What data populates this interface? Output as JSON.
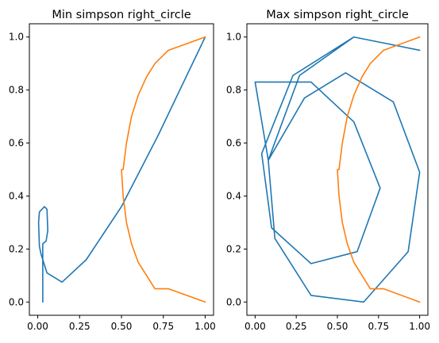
{
  "chart_data": [
    {
      "type": "line",
      "title": "Min simpson right_circle",
      "xlabel": "",
      "ylabel": "",
      "xlim": [
        -0.05,
        1.05
      ],
      "ylim": [
        -0.05,
        1.05
      ],
      "xticks": [
        0.0,
        0.25,
        0.5,
        0.75,
        1.0
      ],
      "xtick_labels": [
        "0.00",
        "0.25",
        "0.50",
        "0.75",
        "1.00"
      ],
      "yticks": [
        0.0,
        0.2,
        0.4,
        0.6,
        0.8,
        1.0
      ],
      "ytick_labels": [
        "0.0",
        "0.2",
        "0.4",
        "0.6",
        "0.8",
        "1.0"
      ],
      "grid": false,
      "series": [
        {
          "color": "#1f77b4",
          "x": [
            0.03,
            0.03,
            0.05,
            0.06,
            0.055,
            0.04,
            0.025,
            0.01,
            0.005,
            0.01,
            0.02,
            0.055,
            0.145,
            0.29,
            0.5,
            0.72,
            1.0
          ],
          "y": [
            0.0,
            0.22,
            0.23,
            0.27,
            0.35,
            0.36,
            0.35,
            0.34,
            0.3,
            0.21,
            0.18,
            0.11,
            0.075,
            0.16,
            0.36,
            0.63,
            1.0
          ]
        },
        {
          "color": "#ff7f0e",
          "x": [
            1.0,
            0.78,
            0.7,
            0.65,
            0.6,
            0.56,
            0.53,
            0.51,
            0.5,
            0.51,
            0.53,
            0.56,
            0.6,
            0.65,
            0.7,
            0.78,
            1.0
          ],
          "y": [
            1.0,
            0.95,
            0.9,
            0.85,
            0.78,
            0.7,
            0.6,
            0.5,
            0.5,
            0.4,
            0.3,
            0.22,
            0.15,
            0.1,
            0.05,
            0.05,
            0.0
          ]
        }
      ]
    },
    {
      "type": "line",
      "title": "Max simpson right_circle",
      "xlabel": "",
      "ylabel": "",
      "xlim": [
        -0.05,
        1.05
      ],
      "ylim": [
        -0.05,
        1.05
      ],
      "xticks": [
        0.0,
        0.25,
        0.5,
        0.75,
        1.0
      ],
      "xtick_labels": [
        "0.00",
        "0.25",
        "0.50",
        "0.75",
        "1.00"
      ],
      "yticks": [
        0.0,
        0.2,
        0.4,
        0.6,
        0.8,
        1.0
      ],
      "ytick_labels": [
        "0.0",
        "0.2",
        "0.4",
        "0.6",
        "0.8",
        "1.0"
      ],
      "grid": false,
      "series": [
        {
          "color": "#1f77b4",
          "x": [
            0.0,
            0.34,
            0.6,
            0.76,
            0.62,
            0.34,
            0.1,
            0.04,
            0.23,
            0.6,
            1.0,
            0.6,
            0.27,
            0.08,
            0.12,
            0.34,
            0.66,
            0.93,
            1.0,
            0.84,
            0.55,
            0.3,
            0.08,
            0.0
          ],
          "y": [
            0.83,
            0.83,
            0.68,
            0.43,
            0.19,
            0.145,
            0.28,
            0.56,
            0.855,
            1.0,
            0.95,
            1.0,
            0.855,
            0.535,
            0.24,
            0.025,
            0.0,
            0.19,
            0.49,
            0.755,
            0.865,
            0.77,
            0.535,
            0.83
          ]
        },
        {
          "color": "#ff7f0e",
          "x": [
            1.0,
            0.78,
            0.7,
            0.65,
            0.6,
            0.56,
            0.53,
            0.51,
            0.5,
            0.51,
            0.53,
            0.56,
            0.6,
            0.65,
            0.7,
            0.78,
            1.0
          ],
          "y": [
            1.0,
            0.95,
            0.9,
            0.85,
            0.78,
            0.7,
            0.6,
            0.5,
            0.5,
            0.4,
            0.3,
            0.22,
            0.15,
            0.1,
            0.05,
            0.05,
            0.0
          ]
        }
      ]
    }
  ]
}
